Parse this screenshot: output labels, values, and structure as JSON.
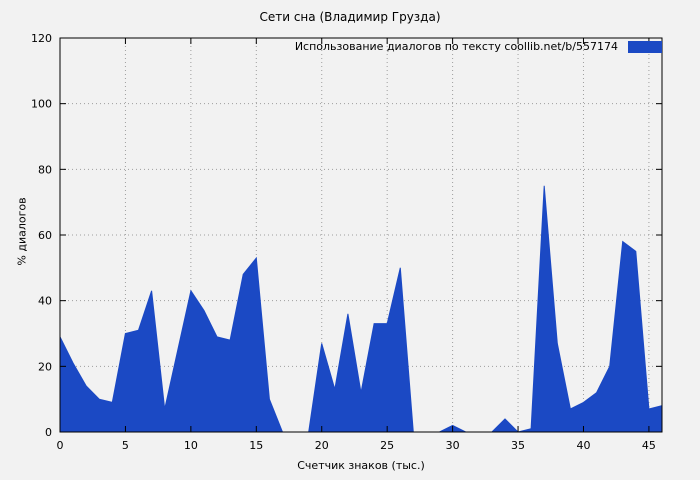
{
  "chart_data": {
    "type": "area",
    "title": "Сети сна (Владимир Грузда)",
    "legend_label": "Использование диалогов по тексту  coollib.net/b/557174",
    "xlabel": "Счетчик знаков (тыс.)",
    "ylabel": "% диалогов",
    "xlim": [
      0,
      46
    ],
    "ylim": [
      0,
      120
    ],
    "xticks": [
      0,
      5,
      10,
      15,
      20,
      25,
      30,
      35,
      40,
      45
    ],
    "yticks": [
      0,
      20,
      40,
      60,
      80,
      100,
      120
    ],
    "grid": true,
    "legend_position": "top-right",
    "x": [
      0,
      1,
      2,
      3,
      4,
      5,
      6,
      7,
      8,
      9,
      10,
      11,
      12,
      13,
      14,
      15,
      16,
      17,
      18,
      19,
      20,
      21,
      22,
      23,
      24,
      25,
      26,
      27,
      28,
      29,
      30,
      31,
      32,
      33,
      34,
      35,
      36,
      37,
      38,
      39,
      40,
      41,
      42,
      43,
      44,
      45,
      46
    ],
    "y": [
      29,
      21,
      14,
      10,
      9,
      30,
      31,
      43,
      7,
      25,
      43,
      37,
      29,
      28,
      48,
      53,
      10,
      0,
      0,
      0,
      27,
      13,
      36,
      12,
      33,
      33,
      50,
      0,
      0,
      0,
      2,
      0,
      0,
      0,
      4,
      0,
      1,
      75,
      27,
      7,
      9,
      12,
      20,
      58,
      55,
      7,
      8
    ],
    "colors": {
      "fill": "#1b49c4",
      "grid": "#9e9e9e",
      "axis": "#000000",
      "background": "#f2f2f2",
      "text": "#000000"
    }
  }
}
